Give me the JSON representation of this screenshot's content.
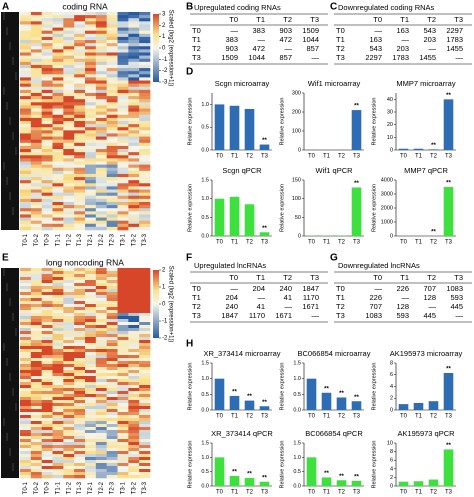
{
  "panel_labels": [
    "A",
    "B",
    "C",
    "D",
    "E",
    "F",
    "G",
    "H"
  ],
  "heatmaps": [
    {
      "title": "coding RNA",
      "colorbar_label": "Scaled (log2 (expression+1))",
      "colorbar_ticks": [
        3,
        2,
        1,
        0,
        -1,
        -2,
        -3
      ],
      "columns": [
        "T0-1",
        "T0-2",
        "T0-3",
        "T1-1",
        "T1-2",
        "T1-3",
        "T2-1",
        "T2-2",
        "T2-3",
        "T3-1",
        "T3-2",
        "T3-3"
      ]
    },
    {
      "title": "long noncoding RNA",
      "colorbar_label": "Scaled (log2 (expression+1))",
      "colorbar_ticks": [
        2,
        1,
        0,
        -1,
        -2
      ],
      "columns": [
        "T0-1",
        "T0-2",
        "T0-3",
        "T1-1",
        "T1-2",
        "T1-3",
        "T2-1",
        "T2-2",
        "T2-3",
        "T3-1",
        "T3-2",
        "T3-3"
      ]
    }
  ],
  "tables": [
    {
      "title": "Upregulated coding RNAs",
      "header": [
        "T0",
        "T1",
        "T2",
        "T3"
      ],
      "rows": [
        {
          "label": "T0",
          "cells": [
            "—",
            383,
            903,
            1509
          ]
        },
        {
          "label": "T1",
          "cells": [
            383,
            "—",
            472,
            1044
          ]
        },
        {
          "label": "T2",
          "cells": [
            903,
            472,
            "—",
            857
          ]
        },
        {
          "label": "T3",
          "cells": [
            1509,
            1044,
            857,
            "—"
          ]
        }
      ]
    },
    {
      "title": "Downregulated coding RNAs",
      "header": [
        "T0",
        "T1",
        "T2",
        "T3"
      ],
      "rows": [
        {
          "label": "T0",
          "cells": [
            "—",
            163,
            543,
            2297
          ]
        },
        {
          "label": "T1",
          "cells": [
            163,
            "—",
            203,
            1783
          ]
        },
        {
          "label": "T2",
          "cells": [
            543,
            203,
            "—",
            1455
          ]
        },
        {
          "label": "T3",
          "cells": [
            2297,
            1783,
            1455,
            "—"
          ]
        }
      ]
    },
    {
      "title": "Upregulated lncRNAs",
      "header": [
        "T0",
        "T1",
        "T2",
        "T3"
      ],
      "rows": [
        {
          "label": "T0",
          "cells": [
            "—",
            204,
            240,
            1847
          ]
        },
        {
          "label": "T1",
          "cells": [
            204,
            "—",
            41,
            1170
          ]
        },
        {
          "label": "T2",
          "cells": [
            240,
            41,
            "—",
            1671
          ]
        },
        {
          "label": "T3",
          "cells": [
            1847,
            1170,
            1671,
            "—"
          ]
        }
      ]
    },
    {
      "title": "Downregulated lncRNAs",
      "header": [
        "T0",
        "T1",
        "T2",
        "T3"
      ],
      "rows": [
        {
          "label": "T0",
          "cells": [
            "—",
            226,
            707,
            1083
          ]
        },
        {
          "label": "T1",
          "cells": [
            226,
            "—",
            128,
            593
          ]
        },
        {
          "label": "T2",
          "cells": [
            707,
            128,
            "—",
            445
          ]
        },
        {
          "label": "T3",
          "cells": [
            1083,
            593,
            445,
            "—"
          ]
        }
      ]
    }
  ],
  "chart_data": [
    {
      "type": "bar",
      "title": "Scgn microarray",
      "ylabel": "Relative expression",
      "color": "#2e6db4",
      "categories": [
        "T0",
        "T1",
        "T2",
        "T3"
      ],
      "values": [
        1.0,
        0.97,
        0.9,
        0.12
      ],
      "sig": [
        null,
        null,
        null,
        "**"
      ],
      "ylim": [
        0,
        1.25
      ],
      "yticks": [
        {
          "value": 0,
          "label": "0.0"
        },
        {
          "value": 0.5,
          "label": "0.5"
        },
        {
          "value": 1,
          "label": "1.0"
        }
      ]
    },
    {
      "type": "bar",
      "title": "Wif1 microarray",
      "ylabel": "Relative expression",
      "color": "#2e6db4",
      "categories": [
        "T0",
        "T1",
        "T2",
        "T3"
      ],
      "values": [
        1,
        1,
        1,
        210
      ],
      "sig": [
        null,
        null,
        null,
        "**"
      ],
      "ylim": [
        0,
        300
      ],
      "yticks": [
        0,
        100,
        200,
        300
      ]
    },
    {
      "type": "bar",
      "title": "MMP7 microarray",
      "ylabel": "Relative expression",
      "color": "#2e6db4",
      "categories": [
        "T0",
        "T1",
        "T2",
        "T3"
      ],
      "values": [
        1,
        1,
        0.5,
        40
      ],
      "sig": [
        null,
        null,
        "**",
        "**"
      ],
      "ylim": [
        0,
        45
      ],
      "yticks": [
        0,
        10,
        20,
        30,
        40
      ]
    },
    {
      "type": "bar",
      "title": "Scgn qPCR",
      "ylabel": "Relative expression",
      "color": "#3ee03e",
      "categories": [
        "T0",
        "T1",
        "T2",
        "T3"
      ],
      "values": [
        1.0,
        1.05,
        0.85,
        0.1
      ],
      "sig": [
        null,
        null,
        null,
        "**"
      ],
      "ylim": [
        0,
        1.5
      ],
      "yticks": [
        {
          "value": 0,
          "label": "0.0"
        },
        {
          "value": 0.5,
          "label": "0.5"
        },
        {
          "value": 1,
          "label": "1.0"
        },
        {
          "value": 1.5,
          "label": "1.5"
        }
      ]
    },
    {
      "type": "bar",
      "title": "Wif1 qPCR",
      "ylabel": "Relative expression",
      "color": "#3ee03e",
      "categories": [
        "T0",
        "T1",
        "T2",
        "T3"
      ],
      "values": [
        1,
        1,
        1,
        130
      ],
      "sig": [
        null,
        null,
        null,
        "**"
      ],
      "ylim": [
        0,
        150
      ],
      "yticks": [
        0,
        50,
        100,
        150
      ]
    },
    {
      "type": "bar",
      "title": "MMP7 qPCR",
      "ylabel": "Relative expression",
      "color": "#3ee03e",
      "categories": [
        "T0",
        "T1",
        "T2",
        "T3"
      ],
      "values": [
        1,
        1,
        5,
        3500
      ],
      "sig": [
        null,
        null,
        "**",
        "**"
      ],
      "ylim": [
        0,
        4000
      ],
      "yticks": [
        0,
        1000,
        2000,
        3000,
        4000
      ]
    },
    {
      "type": "bar",
      "title": "XR_373414 microarray",
      "ylabel": "Relative expression",
      "color": "#2e6db4",
      "categories": [
        "T0",
        "T1",
        "T2",
        "T3"
      ],
      "values": [
        1.0,
        0.45,
        0.3,
        0.12
      ],
      "sig": [
        null,
        "**",
        "**",
        "**"
      ],
      "ylim": [
        0,
        1.5
      ],
      "yticks": [
        {
          "value": 0,
          "label": "0.0"
        },
        {
          "value": 0.5,
          "label": "0.5"
        },
        {
          "value": 1,
          "label": "1.0"
        },
        {
          "value": 1.5,
          "label": "1.5"
        }
      ]
    },
    {
      "type": "bar",
      "title": "BC066854 microarray",
      "ylabel": "Relative expression",
      "color": "#2e6db4",
      "categories": [
        "T0",
        "T1",
        "T2",
        "T3"
      ],
      "values": [
        1.0,
        0.55,
        0.4,
        0.28
      ],
      "sig": [
        null,
        "**",
        "**",
        "**"
      ],
      "ylim": [
        0,
        1.5
      ],
      "yticks": [
        {
          "value": 0,
          "label": "0.0"
        },
        {
          "value": 0.5,
          "label": "0.5"
        },
        {
          "value": 1,
          "label": "1.0"
        },
        {
          "value": 1.5,
          "label": "1.5"
        }
      ]
    },
    {
      "type": "bar",
      "title": "AK195973 microarray",
      "ylabel": "Relative expression",
      "color": "#2e6db4",
      "categories": [
        "T0",
        "T1",
        "T2",
        "T3"
      ],
      "values": [
        1,
        1.2,
        1.5,
        6.3
      ],
      "sig": [
        null,
        null,
        null,
        "**"
      ],
      "ylim": [
        0,
        8
      ],
      "yticks": [
        0,
        2,
        4,
        6,
        8
      ]
    },
    {
      "type": "bar",
      "title": "XR_373414 qPCR",
      "ylabel": "Relative expression",
      "color": "#3ee03e",
      "categories": [
        "T0",
        "T1",
        "T2",
        "T3"
      ],
      "values": [
        1.0,
        0.35,
        0.28,
        0.15
      ],
      "sig": [
        null,
        "**",
        "**",
        "**"
      ],
      "ylim": [
        0,
        1.5
      ],
      "yticks": [
        {
          "value": 0,
          "label": "0.0"
        },
        {
          "value": 0.5,
          "label": "0.5"
        },
        {
          "value": 1,
          "label": "1.0"
        },
        {
          "value": 1.5,
          "label": "1.5"
        }
      ]
    },
    {
      "type": "bar",
      "title": "BC066854 qPCR",
      "ylabel": "Relative expression",
      "color": "#3ee03e",
      "categories": [
        "T0",
        "T1",
        "T2",
        "T3"
      ],
      "values": [
        1.0,
        0.3,
        0.2,
        0.18
      ],
      "sig": [
        null,
        "**",
        "**",
        "**"
      ],
      "ylim": [
        0,
        1.5
      ],
      "yticks": [
        {
          "value": 0,
          "label": "0.0"
        },
        {
          "value": 0.5,
          "label": "0.5"
        },
        {
          "value": 1,
          "label": "1.0"
        },
        {
          "value": 1.5,
          "label": "1.5"
        }
      ]
    },
    {
      "type": "bar",
      "title": "AK195973 qPCR",
      "ylabel": "Relative expression",
      "color": "#3ee03e",
      "categories": [
        "T0",
        "T1",
        "T2",
        "T3"
      ],
      "values": [
        1,
        1.1,
        1.5,
        8.5
      ],
      "sig": [
        null,
        null,
        null,
        "**"
      ],
      "ylim": [
        0,
        10
      ],
      "yticks": [
        0,
        2,
        4,
        6,
        8,
        10
      ]
    }
  ]
}
